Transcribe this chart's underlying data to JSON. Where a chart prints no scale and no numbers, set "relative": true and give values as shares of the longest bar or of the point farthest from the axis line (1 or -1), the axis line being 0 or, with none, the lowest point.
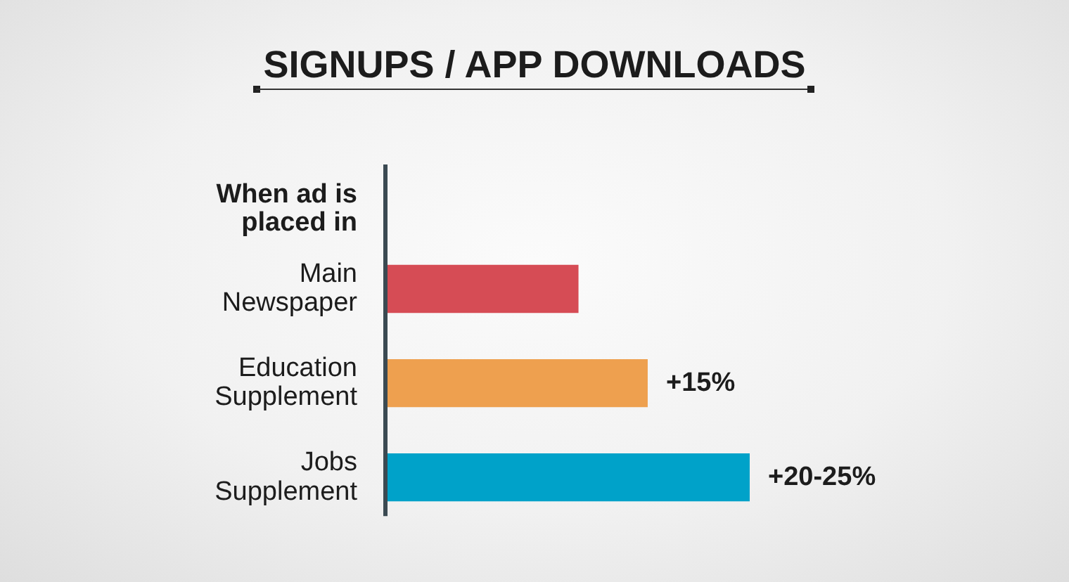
{
  "chart_data": {
    "type": "bar",
    "orientation": "horizontal",
    "relative": true,
    "title": "SIGNUPS / APP DOWNLOADS",
    "ylabel": "When ad is placed in",
    "categories": [
      "Main Newspaper",
      "Education Supplement",
      "Jobs Supplement"
    ],
    "values": [
      0.53,
      0.72,
      1
    ],
    "colors": [
      "#d64c55",
      "#eea04f",
      "#00a2c9"
    ],
    "annotations": [
      {
        "text": "+15%",
        "x": 0.72,
        "y": "Education Supplement"
      },
      {
        "text": "+20-25%",
        "x": 1,
        "y": "Jobs Supplement"
      }
    ]
  }
}
